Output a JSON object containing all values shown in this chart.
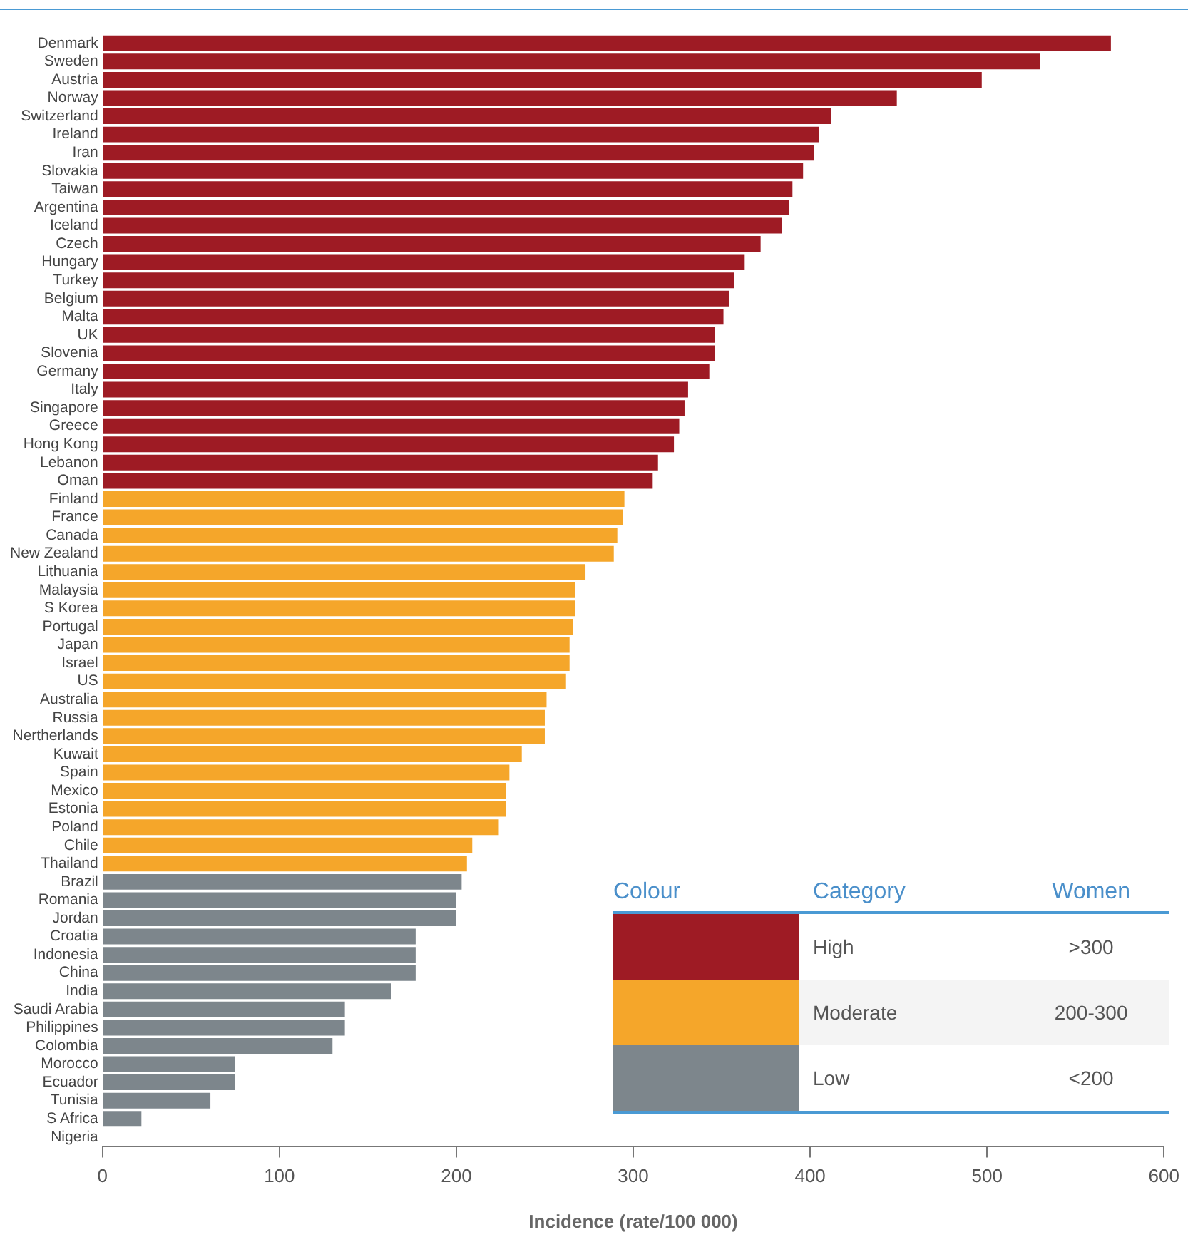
{
  "chart_data": {
    "type": "bar",
    "orientation": "horizontal",
    "stacked": true,
    "xlabel": "Incidence (rate/100 000)",
    "categories": [
      "Denmark",
      "Sweden",
      "Austria",
      "Norway",
      "Switzerland",
      "Ireland",
      "Iran",
      "Slovakia",
      "Taiwan",
      "Argentina",
      "Iceland",
      "Czech",
      "Hungary",
      "Turkey",
      "Belgium",
      "Malta",
      "UK",
      "Slovenia",
      "Germany",
      "Italy",
      "Singapore",
      "Greece",
      "Hong Kong",
      "Lebanon",
      "Oman",
      "Finland",
      "France",
      "Canada",
      "New Zealand",
      "Lithuania",
      "Malaysia",
      "S Korea",
      "Portugal",
      "Japan",
      "Israel",
      "US",
      "Australia",
      "Russia",
      "Nertherlands",
      "Kuwait",
      "Spain",
      "Mexico",
      "Estonia",
      "Poland",
      "Chile",
      "Thailand",
      "Brazil",
      "Romania",
      "Jordan",
      "Croatia",
      "Indonesia",
      "China",
      "India",
      "Saudi Arabia",
      "Philippines",
      "Colombia",
      "Morocco",
      "Ecuador",
      "Tunisia",
      "S Africa",
      "Nigeria"
    ],
    "series": [
      {
        "name": "High",
        "color": "#9e1b24",
        "values": [
          570,
          530,
          497,
          449,
          412,
          405,
          402,
          396,
          390,
          388,
          384,
          372,
          363,
          357,
          354,
          351,
          346,
          346,
          343,
          331,
          329,
          326,
          323,
          314,
          311,
          null,
          null,
          null,
          null,
          null,
          null,
          null,
          null,
          null,
          null,
          null,
          null,
          null,
          null,
          null,
          null,
          null,
          null,
          null,
          null,
          null,
          null,
          null,
          null,
          null,
          null,
          null,
          null,
          null,
          null,
          null,
          null,
          null,
          null,
          null,
          null
        ]
      },
      {
        "name": "Moderate",
        "color": "#f5a62a",
        "values": [
          null,
          null,
          null,
          null,
          null,
          null,
          null,
          null,
          null,
          null,
          null,
          null,
          null,
          null,
          null,
          null,
          null,
          null,
          null,
          null,
          null,
          null,
          null,
          null,
          null,
          295,
          294,
          291,
          289,
          273,
          267,
          267,
          266,
          264,
          264,
          262,
          251,
          250,
          250,
          237,
          230,
          228,
          228,
          224,
          209,
          206,
          null,
          null,
          null,
          null,
          null,
          null,
          null,
          null,
          null,
          null,
          null,
          null,
          null,
          null,
          null
        ]
      },
      {
        "name": "Low",
        "color": "#7d868c",
        "values": [
          null,
          null,
          null,
          null,
          null,
          null,
          null,
          null,
          null,
          null,
          null,
          null,
          null,
          null,
          null,
          null,
          null,
          null,
          null,
          null,
          null,
          null,
          null,
          null,
          null,
          null,
          null,
          null,
          null,
          null,
          null,
          null,
          null,
          null,
          null,
          null,
          null,
          null,
          null,
          null,
          null,
          null,
          null,
          null,
          null,
          null,
          203,
          200,
          200,
          177,
          177,
          177,
          163,
          137,
          137,
          130,
          75,
          75,
          61,
          22,
          null
        ]
      }
    ],
    "xlim": [
      0,
      600
    ],
    "xticks": [
      0,
      100,
      200,
      300,
      400,
      500,
      600
    ],
    "grid": false,
    "legend": "bottom right",
    "annotations": [
      "Colour",
      "Category",
      "Women",
      ">300",
      "200-300",
      "<200"
    ]
  }
}
